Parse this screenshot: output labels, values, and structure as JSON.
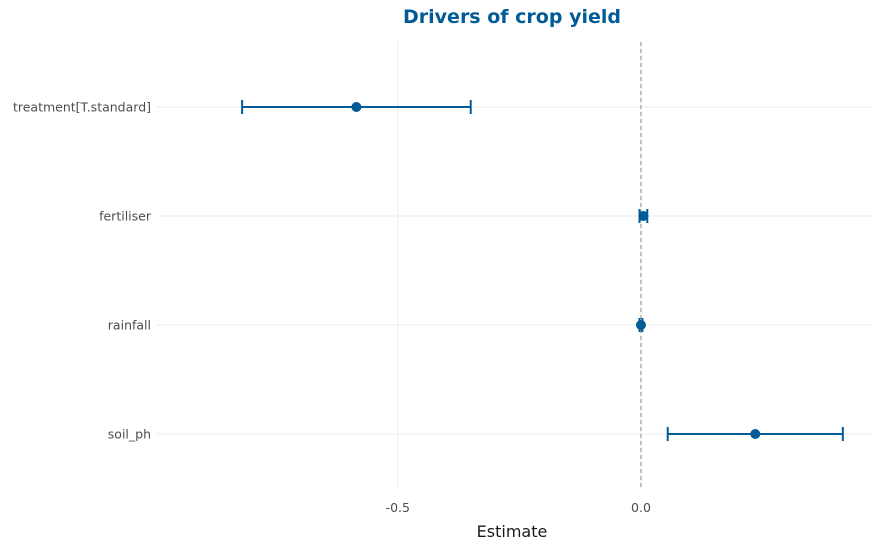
{
  "chart_data": {
    "type": "scatter",
    "subtype": "coefficient-plot",
    "title": "Drivers of crop yield",
    "xlabel": "Estimate",
    "ylabel": "",
    "xlim": [
      -0.995,
      0.475
    ],
    "x_ticks": [
      -0.5,
      0.0
    ],
    "x_tick_labels": [
      "-0.5",
      "0.0"
    ],
    "reference_line": 0,
    "grid": true,
    "legend": "none",
    "terms": [
      "treatment[T.standard]",
      "fertiliser",
      "rainfall",
      "soil_ph"
    ],
    "estimates": [
      -0.585,
      0.005,
      0.0,
      0.235
    ],
    "ci_lower": [
      -0.82,
      -0.003,
      -0.003,
      0.055
    ],
    "ci_upper": [
      -0.35,
      0.013,
      0.003,
      0.415
    ]
  },
  "colors": {
    "series": "#005b96",
    "title": "#005b96",
    "grid": "#ebebeb",
    "reference": "#999999",
    "tick_text": "#4d4d4d",
    "axis_title": "#1a1a1a"
  }
}
